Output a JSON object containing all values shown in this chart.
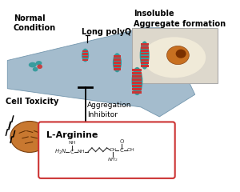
{
  "bg_color": "#ffffff",
  "arrow_color": "#9ab5c8",
  "arrow_edge": "#6a8fa8",
  "text_normal_condition": "Normal\nCondition",
  "text_long_polyq": "Long polyQ",
  "text_insoluble": "Insoluble\nAggregate formation",
  "text_cell_toxicity": "Cell Toxicity",
  "text_aggregation_inhibitor": "Aggregation\nInhibitor",
  "text_larginine": "L-Arginine",
  "box_color": "#cc3333",
  "protein_teal": "#2e9999",
  "protein_red": "#cc3333",
  "brain_color": "#c87830",
  "font_size_labels": 7,
  "font_size_box": 8
}
